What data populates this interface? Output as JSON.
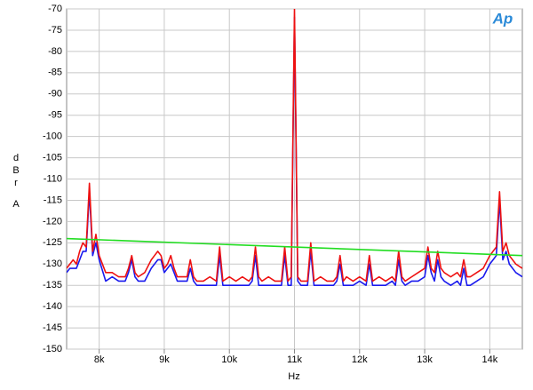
{
  "chart_data": {
    "type": "line",
    "logo": "Ap",
    "xlabel": "Hz",
    "ylabel": [
      "dBr",
      "A"
    ],
    "xlim": [
      7500,
      14500
    ],
    "ylim": [
      -150,
      -70
    ],
    "xticks": [
      {
        "value": 8000,
        "label": "8k"
      },
      {
        "value": 9000,
        "label": "9k"
      },
      {
        "value": 10000,
        "label": "10k"
      },
      {
        "value": 11000,
        "label": "11k"
      },
      {
        "value": 12000,
        "label": "12k"
      },
      {
        "value": 13000,
        "label": "13k"
      },
      {
        "value": 14000,
        "label": "14k"
      }
    ],
    "yticks": [
      -150,
      -145,
      -140,
      -135,
      -130,
      -125,
      -120,
      -115,
      -110,
      -105,
      -100,
      -95,
      -90,
      -85,
      -80,
      -75,
      -70
    ],
    "grid": true,
    "x": [
      7500,
      7550,
      7600,
      7650,
      7700,
      7750,
      7800,
      7850,
      7900,
      7950,
      8000,
      8100,
      8200,
      8300,
      8400,
      8450,
      8500,
      8550,
      8600,
      8700,
      8800,
      8850,
      8900,
      8950,
      9000,
      9050,
      9100,
      9150,
      9200,
      9300,
      9350,
      9400,
      9450,
      9500,
      9600,
      9700,
      9800,
      9850,
      9900,
      10000,
      10100,
      10200,
      10300,
      10350,
      10400,
      10450,
      10500,
      10600,
      10700,
      10800,
      10850,
      10900,
      10950,
      11000,
      11050,
      11100,
      11200,
      11250,
      11300,
      11400,
      11500,
      11600,
      11650,
      11700,
      11750,
      11800,
      11900,
      12000,
      12100,
      12150,
      12200,
      12300,
      12400,
      12500,
      12550,
      12600,
      12650,
      12700,
      12800,
      12900,
      13000,
      13050,
      13100,
      13150,
      13200,
      13250,
      13300,
      13400,
      13500,
      13550,
      13600,
      13650,
      13700,
      13800,
      13900,
      14000,
      14050,
      14100,
      14150,
      14200,
      14250,
      14300,
      14400,
      14500
    ],
    "series": [
      {
        "color": "#1a1aee",
        "values": [
          -132,
          -131,
          -131,
          -131,
          -129,
          -127,
          -127,
          -113,
          -128,
          -125,
          -129,
          -134,
          -133,
          -134,
          -134,
          -132,
          -129,
          -133,
          -134,
          -134,
          -131,
          -130,
          -129,
          -129,
          -132,
          -131,
          -130,
          -132,
          -134,
          -134,
          -134,
          -131,
          -134,
          -135,
          -135,
          -135,
          -135,
          -128,
          -135,
          -135,
          -135,
          -135,
          -135,
          -134,
          -128,
          -135,
          -135,
          -135,
          -135,
          -135,
          -128,
          -135,
          -135,
          -72,
          -134,
          -135,
          -135,
          -127,
          -135,
          -135,
          -135,
          -135,
          -134,
          -130,
          -135,
          -135,
          -135,
          -134,
          -135,
          -130,
          -135,
          -135,
          -135,
          -134,
          -135,
          -129,
          -134,
          -135,
          -134,
          -134,
          -133,
          -128,
          -132,
          -134,
          -129,
          -133,
          -134,
          -135,
          -134,
          -135,
          -131,
          -135,
          -135,
          -134,
          -133,
          -130,
          -129,
          -128,
          -115,
          -129,
          -127,
          -130,
          -132,
          -133
        ]
      },
      {
        "color": "#ee1111",
        "values": [
          -131,
          -130,
          -129,
          -130,
          -127,
          -125,
          -126,
          -111,
          -127,
          -123,
          -128,
          -132,
          -132,
          -133,
          -133,
          -131,
          -128,
          -132,
          -133,
          -132,
          -129,
          -128,
          -127,
          -128,
          -131,
          -130,
          -128,
          -131,
          -133,
          -133,
          -133,
          -129,
          -133,
          -134,
          -134,
          -133,
          -134,
          -126,
          -134,
          -133,
          -134,
          -133,
          -134,
          -133,
          -126,
          -133,
          -134,
          -133,
          -134,
          -134,
          -126,
          -134,
          -133,
          -70,
          -133,
          -134,
          -134,
          -125,
          -134,
          -133,
          -134,
          -134,
          -133,
          -128,
          -134,
          -133,
          -134,
          -133,
          -134,
          -128,
          -134,
          -133,
          -134,
          -133,
          -134,
          -127,
          -133,
          -134,
          -133,
          -132,
          -131,
          -126,
          -131,
          -132,
          -127,
          -131,
          -132,
          -133,
          -132,
          -133,
          -129,
          -133,
          -133,
          -132,
          -131,
          -128,
          -127,
          -126,
          -113,
          -127,
          -125,
          -128,
          -130,
          -131
        ]
      },
      {
        "color": "#22dd22",
        "x": [
          7500,
          14500
        ],
        "values": [
          -124,
          -128
        ]
      }
    ]
  }
}
